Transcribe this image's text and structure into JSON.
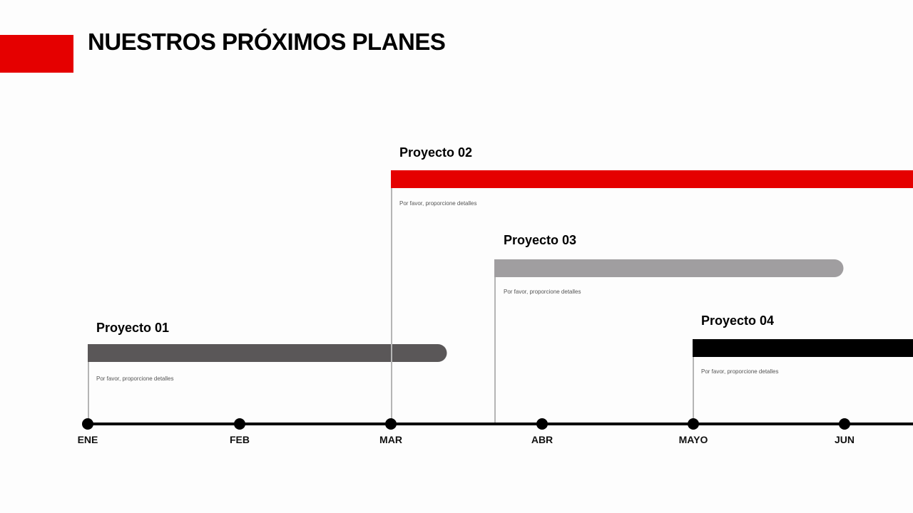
{
  "header": {
    "title": "NUESTROS PRÓXIMOS PLANES"
  },
  "timeline": {
    "months": [
      "ENE",
      "FEB",
      "MAR",
      "ABR",
      "MAYO",
      "JUN"
    ]
  },
  "projects": [
    {
      "title": "Proyecto 01",
      "detail": "Por favor, proporcione detalles"
    },
    {
      "title": "Proyecto 02",
      "detail": "Por favor, proporcione detalles"
    },
    {
      "title": "Proyecto 03",
      "detail": "Por favor, proporcione detalles"
    },
    {
      "title": "Proyecto 04",
      "detail": "Por favor, proporcione detalles"
    }
  ]
}
